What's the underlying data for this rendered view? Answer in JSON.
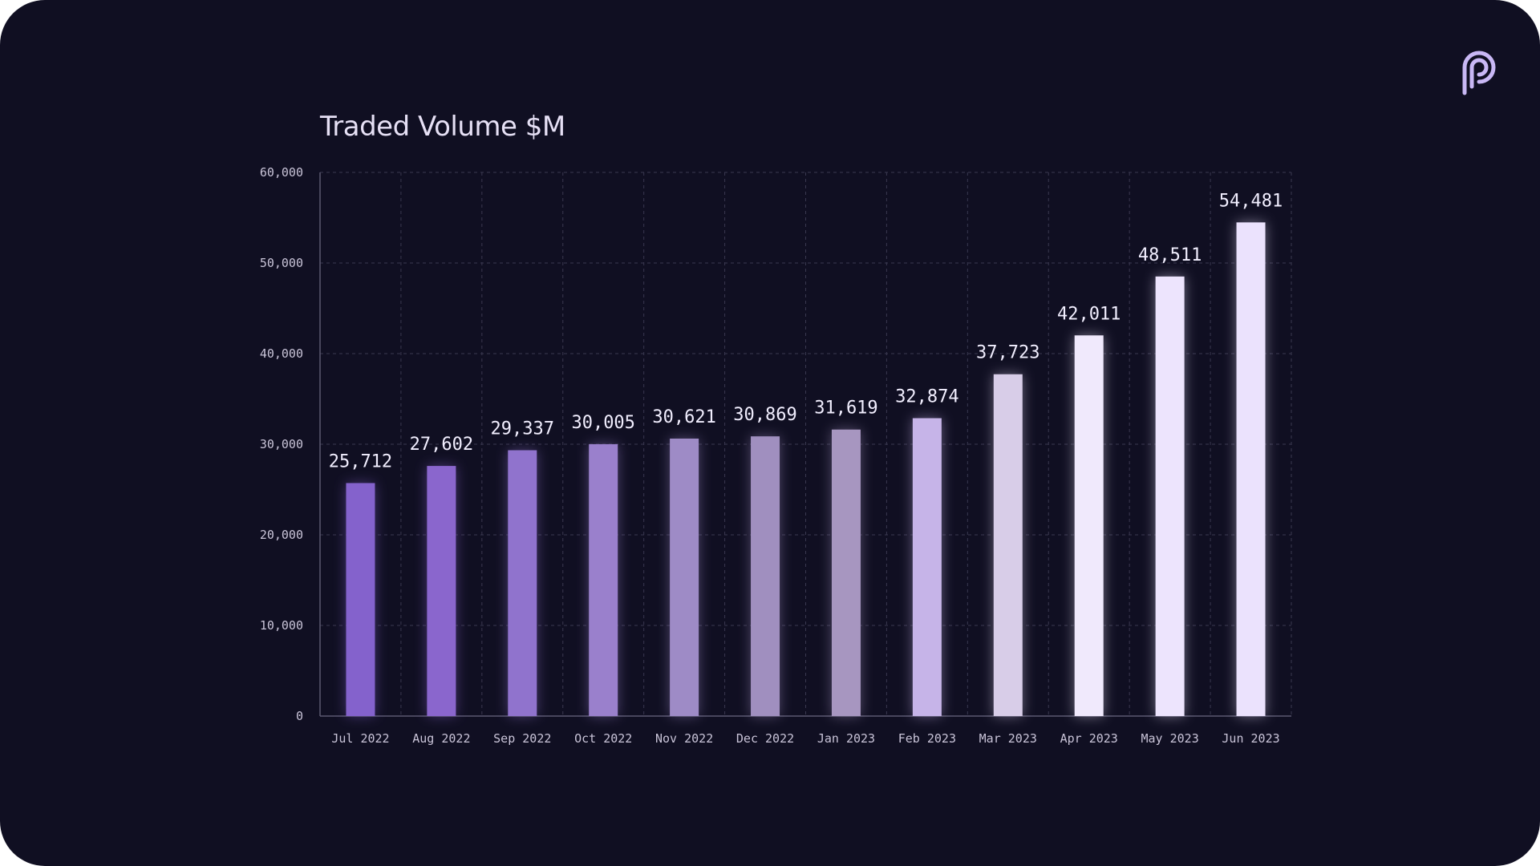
{
  "chart_data": {
    "type": "bar",
    "title": "Traded Volume $M",
    "xlabel": "",
    "ylabel": "",
    "categories": [
      "Jul 2022",
      "Aug 2022",
      "Sep 2022",
      "Oct 2022",
      "Nov 2022",
      "Dec 2022",
      "Jan 2023",
      "Feb 2023",
      "Mar 2023",
      "Apr 2023",
      "May 2023",
      "Jun 2023"
    ],
    "values": [
      25712,
      27602,
      29337,
      30005,
      30621,
      30869,
      31619,
      32874,
      37723,
      42011,
      48511,
      54481
    ],
    "value_labels": [
      "25,712",
      "27,602",
      "29,337",
      "30,005",
      "30,621",
      "30,869",
      "31,619",
      "32,874",
      "37,723",
      "42,011",
      "48,511",
      "54,481"
    ],
    "ylim": [
      0,
      60000
    ],
    "yticks": [
      0,
      10000,
      20000,
      30000,
      40000,
      50000,
      60000
    ],
    "ytick_labels": [
      "0",
      "10,000",
      "20,000",
      "30,000",
      "40,000",
      "50,000",
      "60,000"
    ],
    "grid": true,
    "legend": "none",
    "bar_colors": [
      "#8462cc",
      "#8a66cd",
      "#9073cd",
      "#9a80cc",
      "#9e8bc6",
      "#a08fbf",
      "#a796c0",
      "#c6b4e8",
      "#d8cde8",
      "#f0e9fc",
      "#ede4fd",
      "#ebe2fd"
    ]
  },
  "colors": {
    "background": "#100f22",
    "logo": "#c9b8f5"
  },
  "logo_icon": "pyth-logo-icon"
}
